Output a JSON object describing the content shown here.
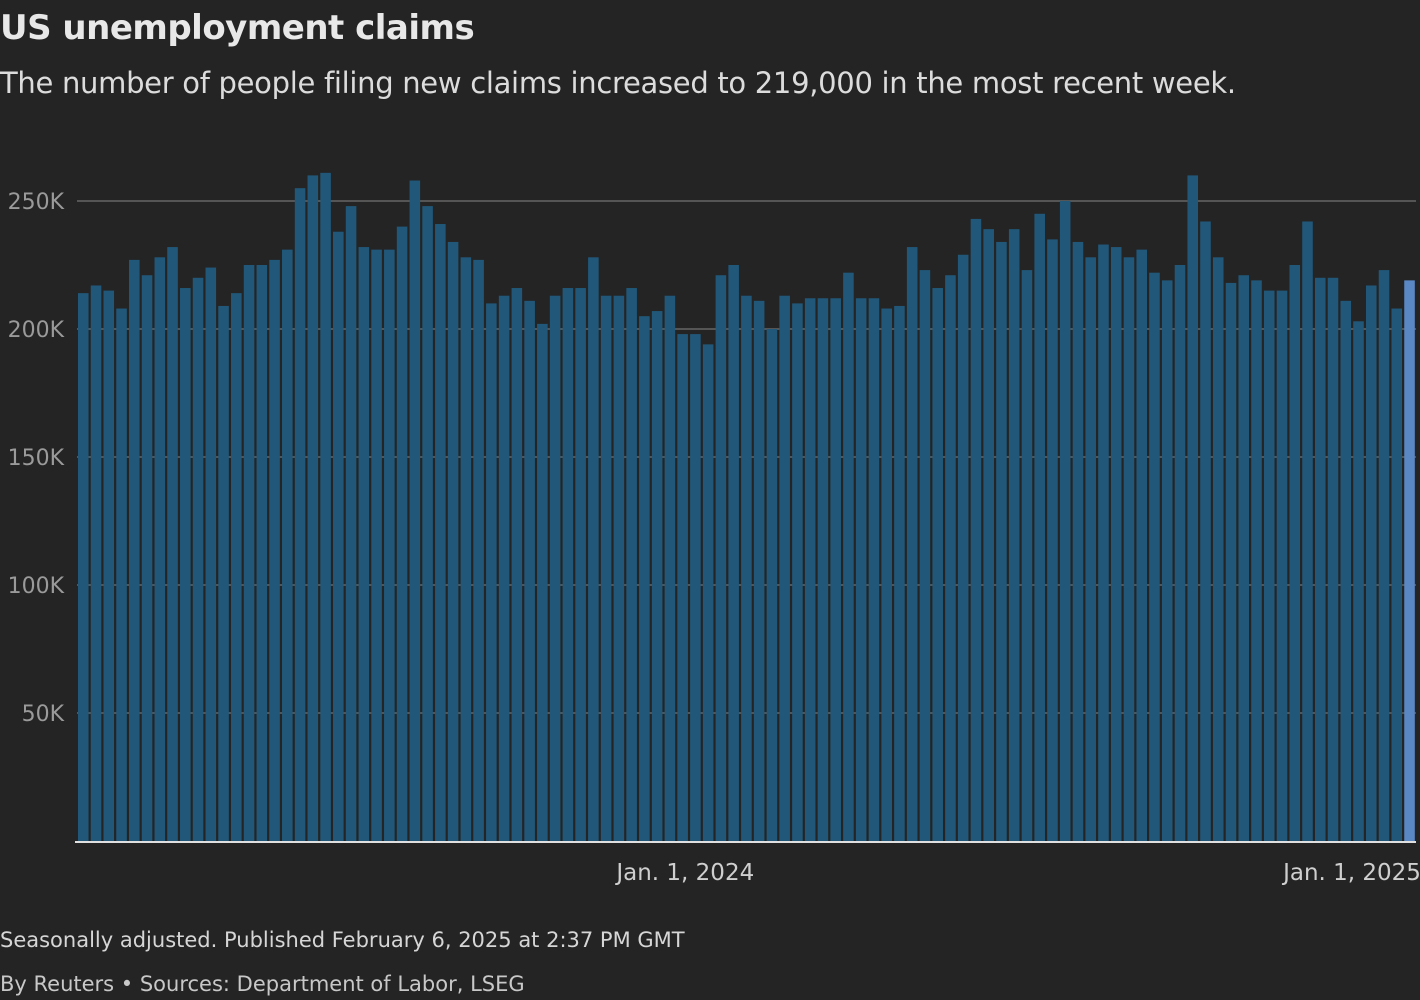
{
  "chart_data": {
    "type": "bar",
    "title": "US unemployment claims",
    "subtitle": "The number of people filing new claims increased to 219,000 in the most recent week.",
    "xlabel": "",
    "ylabel": "",
    "ylim": [
      0,
      262000
    ],
    "grid": true,
    "y_ticks": [
      {
        "value": 50000,
        "label": "50K"
      },
      {
        "value": 100000,
        "label": "100K"
      },
      {
        "value": 150000,
        "label": "150K"
      },
      {
        "value": 200000,
        "label": "200K"
      },
      {
        "value": 250000,
        "label": "250K"
      }
    ],
    "x_ticks": [
      {
        "week_index": 47.7,
        "label": "Jan. 1, 2024"
      },
      {
        "week_index": 100,
        "label": "Jan. 1, 2025"
      }
    ],
    "values": [
      214000,
      217000,
      215000,
      208000,
      227000,
      221000,
      228000,
      232000,
      216000,
      220000,
      224000,
      209000,
      214000,
      225000,
      225000,
      227000,
      231000,
      255000,
      260000,
      261000,
      238000,
      248000,
      232000,
      231000,
      231000,
      240000,
      258000,
      248000,
      241000,
      234000,
      228000,
      227000,
      210000,
      213000,
      216000,
      211000,
      202000,
      213000,
      216000,
      216000,
      228000,
      213000,
      213000,
      216000,
      205000,
      207000,
      213000,
      198000,
      198000,
      194000,
      221000,
      225000,
      213000,
      211000,
      200000,
      213000,
      210000,
      212000,
      212000,
      212000,
      222000,
      212000,
      212000,
      208000,
      209000,
      232000,
      223000,
      216000,
      221000,
      229000,
      243000,
      239000,
      234000,
      239000,
      223000,
      245000,
      235000,
      250000,
      234000,
      228000,
      233000,
      232000,
      228000,
      231000,
      222000,
      219000,
      225000,
      260000,
      242000,
      228000,
      218000,
      221000,
      219000,
      215000,
      215000,
      225000,
      242000,
      220000,
      220000,
      211000,
      203000,
      217000,
      223000,
      208000,
      219000
    ],
    "highlight_last": true,
    "colors": {
      "bar": "#21587a",
      "highlight": "#5a88c5",
      "grid": "#555555",
      "baseline": "#e0e0e0"
    }
  },
  "footer": {
    "note": "Seasonally adjusted. Published February 6, 2025 at 2:37 PM GMT",
    "source": "By Reuters • Sources: Department of Labor, LSEG"
  }
}
